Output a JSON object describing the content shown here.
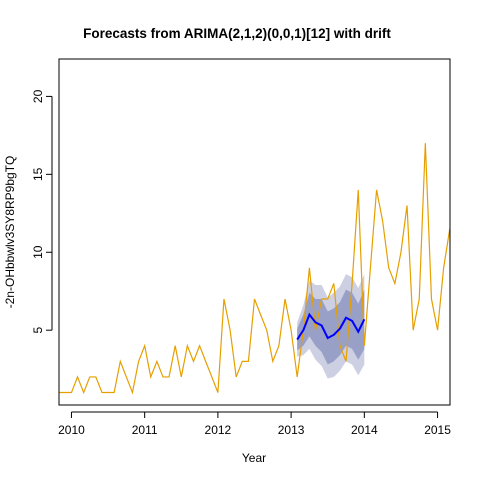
{
  "chart_data": {
    "type": "line",
    "title": "Forecasts from ARIMA(2,1,2)(0,0,1)[12] with drift",
    "xlabel": "Year",
    "ylabel": "-2n-OHbbwlv3SY8RP9bgTQ",
    "xlim": [
      2009.83,
      2015.17
    ],
    "ylim": [
      0.2,
      22.4
    ],
    "x_ticks": [
      2010,
      2011,
      2012,
      2013,
      2014,
      2015
    ],
    "x_tick_labels": [
      "2010",
      "2011",
      "2012",
      "2013",
      "2014",
      "2015"
    ],
    "y_ticks": [
      5,
      10,
      15,
      20
    ],
    "y_tick_labels": [
      "5",
      "10",
      "15",
      "20"
    ],
    "grid": false,
    "legend": "none",
    "colors": {
      "observed": "#E69F00",
      "forecast": "#0000FF",
      "band80": "#99A0C8",
      "band95": "#CDD0E2"
    },
    "series": [
      {
        "role": "observed",
        "x": [
          2009.833,
          2009.917,
          2010.0,
          2010.083,
          2010.167,
          2010.25,
          2010.333,
          2010.417,
          2010.5,
          2010.583,
          2010.667,
          2010.75,
          2010.833,
          2010.917,
          2011.0,
          2011.083,
          2011.167,
          2011.25,
          2011.333,
          2011.417,
          2011.5,
          2011.583,
          2011.667,
          2011.75,
          2011.833,
          2011.917,
          2012.0,
          2012.083,
          2012.167,
          2012.25,
          2012.333,
          2012.417,
          2012.5,
          2012.583,
          2012.667,
          2012.75,
          2012.833,
          2012.917,
          2013.0,
          2013.083,
          2013.167,
          2013.25,
          2013.333,
          2013.417,
          2013.5,
          2013.583,
          2013.667,
          2013.75,
          2013.833,
          2013.917,
          2014.0,
          2014.083,
          2014.167,
          2014.25,
          2014.333,
          2014.417,
          2014.5,
          2014.583,
          2014.667,
          2014.75,
          2014.833,
          2014.917,
          2015.0,
          2015.083,
          2015.167
        ],
        "values": [
          1,
          1,
          1,
          2,
          1,
          2,
          2,
          1,
          1,
          1,
          3,
          2,
          1,
          3,
          4,
          2,
          3,
          2,
          2,
          4,
          2,
          4,
          3,
          4,
          3,
          2,
          1,
          7,
          5,
          2,
          3,
          3,
          7,
          6,
          5,
          3,
          4,
          7,
          5,
          2,
          5,
          9,
          5,
          7,
          7,
          8,
          4,
          3,
          8,
          14,
          4,
          9,
          14,
          12,
          9,
          8,
          10,
          13,
          5,
          7,
          17,
          7,
          5,
          9,
          11.5
        ]
      },
      {
        "role": "forecast",
        "x": [
          2013.083,
          2013.167,
          2013.25,
          2013.333,
          2013.417,
          2013.5,
          2013.583,
          2013.667,
          2013.75,
          2013.833,
          2013.917,
          2014.0
        ],
        "values": [
          4.4,
          5.0,
          6.0,
          5.5,
          5.3,
          4.5,
          4.7,
          5.1,
          5.8,
          5.6,
          4.9,
          5.7
        ],
        "lo80": [
          3.7,
          4.0,
          4.6,
          4.0,
          3.6,
          2.8,
          3.0,
          3.4,
          4.0,
          3.8,
          3.1,
          3.8
        ],
        "hi80": [
          5.1,
          6.0,
          7.4,
          7.0,
          7.0,
          6.2,
          6.4,
          6.8,
          7.6,
          7.4,
          6.7,
          7.6
        ],
        "lo95": [
          3.3,
          3.4,
          3.8,
          3.1,
          2.7,
          1.9,
          2.0,
          2.4,
          3.0,
          2.8,
          2.1,
          2.8
        ],
        "hi95": [
          5.5,
          6.6,
          8.2,
          7.9,
          7.9,
          7.1,
          7.4,
          7.8,
          8.6,
          8.4,
          7.7,
          8.6
        ]
      }
    ]
  }
}
